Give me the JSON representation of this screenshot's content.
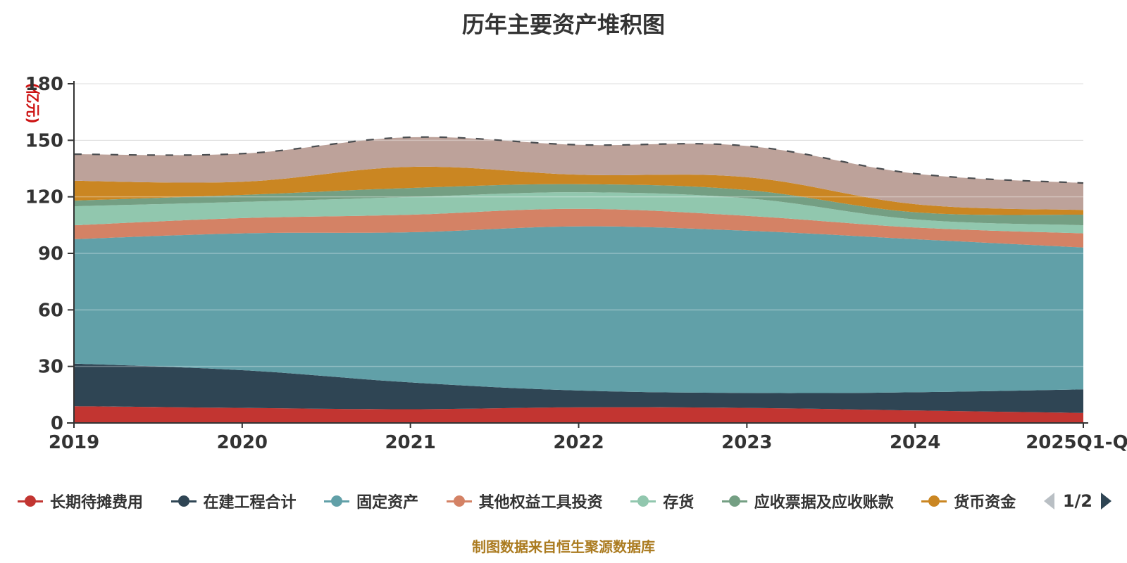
{
  "title": "历年主要资产堆积图",
  "footer": {
    "text": "制图数据来自恒生聚源数据库",
    "color": "#ab7b20"
  },
  "legend": {
    "pager": {
      "text": "1/2",
      "prev_enabled": false,
      "next_enabled": true,
      "prev_color": "#b9bfc4",
      "next_color": "#2f4554"
    }
  },
  "chart_data": {
    "type": "area",
    "stacked": true,
    "smooth": true,
    "grid": true,
    "legend_position": "bottom",
    "categories": [
      "2019",
      "2020",
      "2021",
      "2022",
      "2023",
      "2024",
      "2025Q1-Q3"
    ],
    "y_axis": {
      "name": "(亿元)",
      "name_color": "#cc1111",
      "min": 0,
      "max": 180,
      "interval": 30,
      "ticks": [
        0,
        30,
        60,
        90,
        120,
        150,
        180
      ]
    },
    "series": [
      {
        "name": "长期待摊费用",
        "color": "#c23531",
        "legend_visible": true,
        "values": [
          8.9,
          8.0,
          7.3,
          8.3,
          8.0,
          6.6,
          5.3
        ]
      },
      {
        "name": "在建工程合计",
        "color": "#2f4554",
        "legend_visible": true,
        "values": [
          22.6,
          20.0,
          14.2,
          8.9,
          7.9,
          9.7,
          12.5
        ]
      },
      {
        "name": "固定资产",
        "color": "#61a0a8",
        "legend_visible": true,
        "values": [
          66.0,
          72.6,
          79.7,
          87.1,
          86.1,
          81.2,
          75.3
        ]
      },
      {
        "name": "其他权益工具投资",
        "color": "#d48265",
        "legend_visible": true,
        "values": [
          7.4,
          8.1,
          9.3,
          9.3,
          7.9,
          6.2,
          7.5
        ]
      },
      {
        "name": "存货",
        "color": "#91c7ae",
        "legend_visible": true,
        "values": [
          10.1,
          8.6,
          9.4,
          8.8,
          9.3,
          4.3,
          4.3
        ]
      },
      {
        "name": "应收票据及应收账款",
        "color": "#749f83",
        "legend_visible": true,
        "values": [
          3.0,
          3.7,
          4.8,
          4.3,
          4.4,
          3.8,
          5.6
        ]
      },
      {
        "name": "货币资金",
        "color": "#ca8622",
        "legend_visible": true,
        "values": [
          10.5,
          7.0,
          11.2,
          5.0,
          6.8,
          4.3,
          2.5
        ]
      },
      {
        "name": "",
        "color": "#bda29a",
        "legend_visible": false,
        "values": [
          14.1,
          14.9,
          15.7,
          15.9,
          16.6,
          16.2,
          14.3
        ]
      }
    ],
    "top_edge_line_color": "#4a4d50",
    "axis_color": "#333333",
    "gridline_color": "#cccccc"
  }
}
